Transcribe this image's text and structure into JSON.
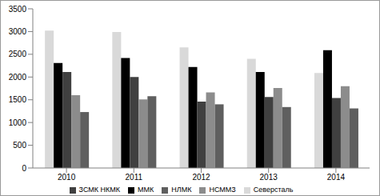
{
  "chart_data": {
    "type": "bar",
    "categories": [
      "2010",
      "2011",
      "2012",
      "2013",
      "2014"
    ],
    "series": [
      {
        "name": "Северсталь",
        "color": "#d9d9d9",
        "values": [
          3020,
          2990,
          2650,
          2400,
          2090
        ]
      },
      {
        "name": "ММК",
        "color": "#000000",
        "values": [
          2310,
          2420,
          2220,
          2110,
          2590
        ]
      },
      {
        "name": "ЗСМК НКМК",
        "color": "#404040",
        "values": [
          2110,
          2000,
          1460,
          1560,
          1540
        ]
      },
      {
        "name": "НСММЗ",
        "color": "#8c8c8c",
        "values": [
          1600,
          1510,
          1660,
          1760,
          1800
        ]
      },
      {
        "name": "НЛМК",
        "color": "#5f5f5f",
        "values": [
          1230,
          1580,
          1400,
          1340,
          1310
        ]
      }
    ],
    "ylim": [
      0,
      3500
    ],
    "yticks": [
      0,
      500,
      1000,
      1500,
      2000,
      2500,
      3000,
      3500
    ],
    "grid": false,
    "legend": "bottom"
  }
}
